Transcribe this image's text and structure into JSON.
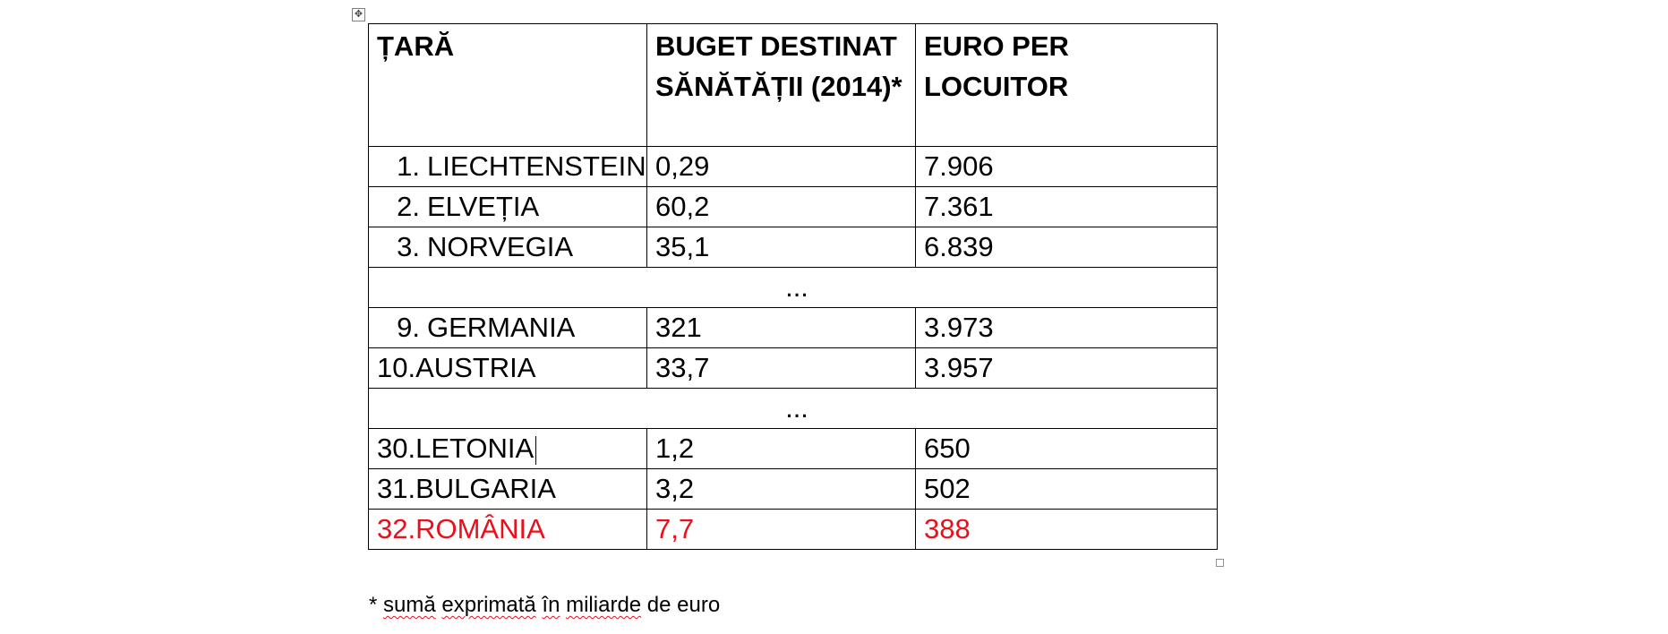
{
  "table": {
    "headers": [
      "ȚARĂ",
      "BUGET DESTINAT SĂNĂTĂȚII (2014)*",
      "EURO PER LOCUITOR"
    ],
    "ellipsis": "...",
    "rows": [
      {
        "num": "1.",
        "country": "LIECHTENSTEIN",
        "budget": "0,29",
        "per_capita": "7.906"
      },
      {
        "num": "2.",
        "country": "ELVEȚIA",
        "budget": "60,2",
        "per_capita": "7.361"
      },
      {
        "num": "3.",
        "country": "NORVEGIA",
        "budget": "35,1",
        "per_capita": "6.839"
      },
      {
        "num": "9.",
        "country": "GERMANIA",
        "budget": "321",
        "per_capita": "3.973"
      },
      {
        "num": "10.",
        "country": "AUSTRIA",
        "budget": "33,7",
        "per_capita": "3.957"
      },
      {
        "num": "30.",
        "country": "LETONIA",
        "budget": "1,2",
        "per_capita": "650"
      },
      {
        "num": "31.",
        "country": "BULGARIA",
        "budget": "3,2",
        "per_capita": "502"
      },
      {
        "num": "32.",
        "country": "ROMÂNIA",
        "budget": "7,7",
        "per_capita": "388"
      }
    ],
    "highlight_color": "#e8101a"
  },
  "footnote": {
    "prefix": "* ",
    "w1": "sumă",
    "s1": " ",
    "w2": "exprimată",
    "s2": " ",
    "w3": "în",
    "s3": " ",
    "w4": "miliarde",
    "suffix": " de euro"
  },
  "icons": {
    "move_handle": "move-arrows-icon",
    "resize_handle": "resize-square-icon"
  }
}
